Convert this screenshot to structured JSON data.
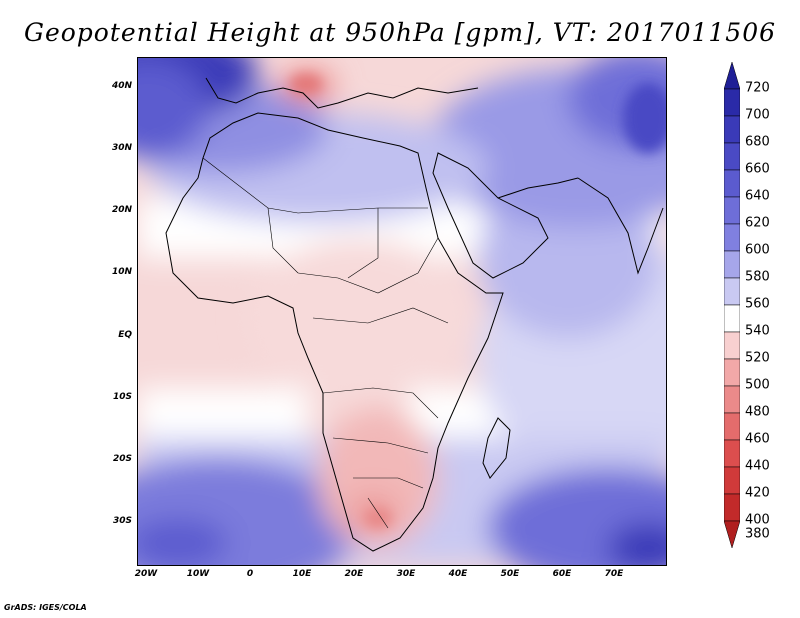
{
  "title": "Geopotential Height at 950hPa [gpm], VT: 2017011506",
  "footer": "GrADS: IGES/COLA",
  "map": {
    "variable": "Geopotential Height",
    "level": "950hPa",
    "units": "gpm",
    "valid_time": "2017011506",
    "region": "Africa and surrounding regions",
    "lat_labels": [
      "40N",
      "30N",
      "20N",
      "10N",
      "EQ",
      "10S",
      "20S",
      "30S"
    ],
    "lon_labels": [
      "20W",
      "10W",
      "0",
      "10E",
      "20E",
      "30E",
      "40E",
      "50E",
      "60E",
      "70E"
    ]
  },
  "colorbar": {
    "levels": [
      "720",
      "700",
      "680",
      "660",
      "640",
      "620",
      "600",
      "580",
      "560",
      "540",
      "520",
      "500",
      "480",
      "460",
      "440",
      "420",
      "400",
      "380"
    ],
    "colors": [
      "#1f1f96",
      "#2a2aa8",
      "#3a3ab8",
      "#4a4ac4",
      "#5b5bcf",
      "#6e6ed8",
      "#8080e0",
      "#a6a6ea",
      "#c9c9f2",
      "#ffffff",
      "#f8d0d0",
      "#f2a8a8",
      "#eb8a8a",
      "#e46c6c",
      "#dc4e4e",
      "#d03a3a",
      "#c22a2a",
      "#b01f1f"
    ]
  },
  "colors": {
    "land_border": "#000000",
    "background": "#ffffff"
  }
}
